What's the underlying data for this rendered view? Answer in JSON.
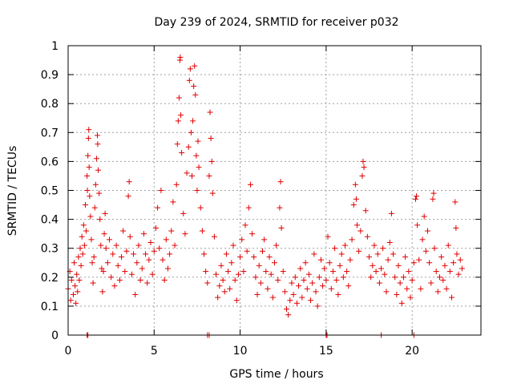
{
  "chart_data": {
    "type": "scatter",
    "title": "Day 239 of 2024, SRMTID for receiver p032",
    "xlabel": "GPS time / hours",
    "ylabel": "SRMTID / TECUs",
    "xlim": [
      0,
      24
    ],
    "ylim": [
      0,
      1
    ],
    "x_ticks": [
      0,
      5,
      10,
      15,
      20
    ],
    "x_tick_labels": [
      "0",
      "5",
      "10",
      "15",
      "20"
    ],
    "y_ticks": [
      0,
      0.1,
      0.2,
      0.3,
      0.4,
      0.5,
      0.6,
      0.7,
      0.8,
      0.9,
      1
    ],
    "y_tick_labels": [
      "0",
      "0.1",
      "0.2",
      "0.3",
      "0.4",
      "0.5",
      "0.6",
      "0.7",
      "0.8",
      "0.9",
      "1"
    ],
    "grid": true,
    "marker": "plus",
    "color": "#e00000",
    "series": [
      {
        "name": "SRMTID",
        "points": [
          [
            0.0,
            0.16
          ],
          [
            0.1,
            0.22
          ],
          [
            0.15,
            0.12
          ],
          [
            0.2,
            0.19
          ],
          [
            0.3,
            0.14
          ],
          [
            0.35,
            0.25
          ],
          [
            0.4,
            0.17
          ],
          [
            0.45,
            0.11
          ],
          [
            0.5,
            0.21
          ],
          [
            0.55,
            0.15
          ],
          [
            0.6,
            0.27
          ],
          [
            0.65,
            0.19
          ],
          [
            0.7,
            0.3
          ],
          [
            0.75,
            0.24
          ],
          [
            0.8,
            0.34
          ],
          [
            0.85,
            0.28
          ],
          [
            0.9,
            0.38
          ],
          [
            0.95,
            0.31
          ],
          [
            1.0,
            0.45
          ],
          [
            1.05,
            0.36
          ],
          [
            1.1,
            0.55
          ],
          [
            1.12,
            0.5
          ],
          [
            1.15,
            0.62
          ],
          [
            1.18,
            0.68
          ],
          [
            1.2,
            0.71
          ],
          [
            1.22,
            0.58
          ],
          [
            1.25,
            0.48
          ],
          [
            1.3,
            0.41
          ],
          [
            1.35,
            0.33
          ],
          [
            1.4,
            0.25
          ],
          [
            1.45,
            0.18
          ],
          [
            1.5,
            0.27
          ],
          [
            1.55,
            0.44
          ],
          [
            1.6,
            0.52
          ],
          [
            1.65,
            0.61
          ],
          [
            1.7,
            0.69
          ],
          [
            1.72,
            0.66
          ],
          [
            1.75,
            0.57
          ],
          [
            1.8,
            0.49
          ],
          [
            1.85,
            0.4
          ],
          [
            1.9,
            0.31
          ],
          [
            1.95,
            0.23
          ],
          [
            2.0,
            0.15
          ],
          [
            2.05,
            0.22
          ],
          [
            2.1,
            0.35
          ],
          [
            2.15,
            0.42
          ],
          [
            2.2,
            0.3
          ],
          [
            2.3,
            0.25
          ],
          [
            2.4,
            0.33
          ],
          [
            2.5,
            0.2
          ],
          [
            2.6,
            0.28
          ],
          [
            2.7,
            0.17
          ],
          [
            2.8,
            0.31
          ],
          [
            2.9,
            0.24
          ],
          [
            3.0,
            0.19
          ],
          [
            3.1,
            0.27
          ],
          [
            3.2,
            0.36
          ],
          [
            3.3,
            0.22
          ],
          [
            3.4,
            0.29
          ],
          [
            3.5,
            0.48
          ],
          [
            3.55,
            0.53
          ],
          [
            3.6,
            0.34
          ],
          [
            3.7,
            0.21
          ],
          [
            3.8,
            0.28
          ],
          [
            3.9,
            0.14
          ],
          [
            4.0,
            0.25
          ],
          [
            4.1,
            0.31
          ],
          [
            4.2,
            0.19
          ],
          [
            4.3,
            0.23
          ],
          [
            4.4,
            0.35
          ],
          [
            4.5,
            0.28
          ],
          [
            4.6,
            0.18
          ],
          [
            4.7,
            0.26
          ],
          [
            4.8,
            0.32
          ],
          [
            4.9,
            0.21
          ],
          [
            5.0,
            0.29
          ],
          [
            5.1,
            0.37
          ],
          [
            5.2,
            0.44
          ],
          [
            5.3,
            0.3
          ],
          [
            5.4,
            0.5
          ],
          [
            5.5,
            0.26
          ],
          [
            5.6,
            0.19
          ],
          [
            5.7,
            0.33
          ],
          [
            5.8,
            0.23
          ],
          [
            5.9,
            0.28
          ],
          [
            6.0,
            0.36
          ],
          [
            6.1,
            0.46
          ],
          [
            6.2,
            0.31
          ],
          [
            6.3,
            0.52
          ],
          [
            6.35,
            0.66
          ],
          [
            6.4,
            0.74
          ],
          [
            6.45,
            0.82
          ],
          [
            6.5,
            0.95
          ],
          [
            6.52,
            0.96
          ],
          [
            6.55,
            0.76
          ],
          [
            6.6,
            0.63
          ],
          [
            6.7,
            0.42
          ],
          [
            6.8,
            0.35
          ],
          [
            6.9,
            0.56
          ],
          [
            7.0,
            0.65
          ],
          [
            7.05,
            0.88
          ],
          [
            7.1,
            0.92
          ],
          [
            7.15,
            0.7
          ],
          [
            7.2,
            0.55
          ],
          [
            7.25,
            0.74
          ],
          [
            7.3,
            0.86
          ],
          [
            7.35,
            0.93
          ],
          [
            7.4,
            0.83
          ],
          [
            7.45,
            0.62
          ],
          [
            7.5,
            0.5
          ],
          [
            7.55,
            0.67
          ],
          [
            7.6,
            0.58
          ],
          [
            7.7,
            0.44
          ],
          [
            7.8,
            0.36
          ],
          [
            7.9,
            0.28
          ],
          [
            8.0,
            0.22
          ],
          [
            8.1,
            0.18
          ],
          [
            8.2,
            0.55
          ],
          [
            8.25,
            0.77
          ],
          [
            8.3,
            0.68
          ],
          [
            8.35,
            0.6
          ],
          [
            8.4,
            0.49
          ],
          [
            8.5,
            0.34
          ],
          [
            8.6,
            0.21
          ],
          [
            8.7,
            0.13
          ],
          [
            8.8,
            0.17
          ],
          [
            8.9,
            0.24
          ],
          [
            9.0,
            0.19
          ],
          [
            9.1,
            0.15
          ],
          [
            9.2,
            0.28
          ],
          [
            9.3,
            0.22
          ],
          [
            9.4,
            0.16
          ],
          [
            9.5,
            0.25
          ],
          [
            9.6,
            0.31
          ],
          [
            9.7,
            0.19
          ],
          [
            9.8,
            0.12
          ],
          [
            9.9,
            0.21
          ],
          [
            10.0,
            0.27
          ],
          [
            10.1,
            0.33
          ],
          [
            10.2,
            0.22
          ],
          [
            10.3,
            0.38
          ],
          [
            10.4,
            0.29
          ],
          [
            10.5,
            0.44
          ],
          [
            10.6,
            0.52
          ],
          [
            10.7,
            0.35
          ],
          [
            10.8,
            0.27
          ],
          [
            10.9,
            0.2
          ],
          [
            11.0,
            0.14
          ],
          [
            11.1,
            0.24
          ],
          [
            11.2,
            0.18
          ],
          [
            11.3,
            0.29
          ],
          [
            11.4,
            0.33
          ],
          [
            11.5,
            0.22
          ],
          [
            11.6,
            0.16
          ],
          [
            11.7,
            0.27
          ],
          [
            11.8,
            0.21
          ],
          [
            11.9,
            0.13
          ],
          [
            12.0,
            0.25
          ],
          [
            12.1,
            0.31
          ],
          [
            12.2,
            0.19
          ],
          [
            12.3,
            0.44
          ],
          [
            12.35,
            0.53
          ],
          [
            12.4,
            0.37
          ],
          [
            12.5,
            0.22
          ],
          [
            12.6,
            0.15
          ],
          [
            12.7,
            0.09
          ],
          [
            12.8,
            0.07
          ],
          [
            12.9,
            0.12
          ],
          [
            13.0,
            0.18
          ],
          [
            13.1,
            0.14
          ],
          [
            13.2,
            0.2
          ],
          [
            13.3,
            0.11
          ],
          [
            13.4,
            0.17
          ],
          [
            13.5,
            0.23
          ],
          [
            13.6,
            0.13
          ],
          [
            13.7,
            0.19
          ],
          [
            13.8,
            0.25
          ],
          [
            13.9,
            0.16
          ],
          [
            14.0,
            0.21
          ],
          [
            14.1,
            0.12
          ],
          [
            14.2,
            0.18
          ],
          [
            14.3,
            0.28
          ],
          [
            14.4,
            0.15
          ],
          [
            14.5,
            0.1
          ],
          [
            14.6,
            0.2
          ],
          [
            14.7,
            0.26
          ],
          [
            14.8,
            0.17
          ],
          [
            14.9,
            0.23
          ],
          [
            15.0,
            0.19
          ],
          [
            15.1,
            0.34
          ],
          [
            15.2,
            0.25
          ],
          [
            15.3,
            0.16
          ],
          [
            15.4,
            0.22
          ],
          [
            15.5,
            0.3
          ],
          [
            15.6,
            0.19
          ],
          [
            15.7,
            0.14
          ],
          [
            15.8,
            0.24
          ],
          [
            15.9,
            0.28
          ],
          [
            16.0,
            0.2
          ],
          [
            16.1,
            0.31
          ],
          [
            16.2,
            0.22
          ],
          [
            16.3,
            0.17
          ],
          [
            16.4,
            0.26
          ],
          [
            16.5,
            0.33
          ],
          [
            16.6,
            0.45
          ],
          [
            16.7,
            0.52
          ],
          [
            16.75,
            0.47
          ],
          [
            16.8,
            0.38
          ],
          [
            16.9,
            0.29
          ],
          [
            17.0,
            0.36
          ],
          [
            17.1,
            0.55
          ],
          [
            17.15,
            0.6
          ],
          [
            17.2,
            0.58
          ],
          [
            17.3,
            0.43
          ],
          [
            17.4,
            0.34
          ],
          [
            17.5,
            0.27
          ],
          [
            17.6,
            0.2
          ],
          [
            17.7,
            0.24
          ],
          [
            17.8,
            0.31
          ],
          [
            17.9,
            0.22
          ],
          [
            18.0,
            0.28
          ],
          [
            18.1,
            0.18
          ],
          [
            18.2,
            0.23
          ],
          [
            18.3,
            0.3
          ],
          [
            18.4,
            0.21
          ],
          [
            18.5,
            0.15
          ],
          [
            18.6,
            0.26
          ],
          [
            18.7,
            0.32
          ],
          [
            18.8,
            0.42
          ],
          [
            18.9,
            0.28
          ],
          [
            19.0,
            0.2
          ],
          [
            19.1,
            0.14
          ],
          [
            19.2,
            0.24
          ],
          [
            19.3,
            0.18
          ],
          [
            19.4,
            0.11
          ],
          [
            19.5,
            0.2
          ],
          [
            19.6,
            0.27
          ],
          [
            19.7,
            0.16
          ],
          [
            19.8,
            0.22
          ],
          [
            19.9,
            0.13
          ],
          [
            20.0,
            0.19
          ],
          [
            20.1,
            0.25
          ],
          [
            20.2,
            0.47
          ],
          [
            20.25,
            0.48
          ],
          [
            20.3,
            0.38
          ],
          [
            20.4,
            0.26
          ],
          [
            20.5,
            0.16
          ],
          [
            20.6,
            0.33
          ],
          [
            20.7,
            0.41
          ],
          [
            20.8,
            0.29
          ],
          [
            20.9,
            0.36
          ],
          [
            21.0,
            0.25
          ],
          [
            21.1,
            0.18
          ],
          [
            21.2,
            0.47
          ],
          [
            21.25,
            0.49
          ],
          [
            21.3,
            0.3
          ],
          [
            21.4,
            0.22
          ],
          [
            21.5,
            0.15
          ],
          [
            21.6,
            0.2
          ],
          [
            21.7,
            0.27
          ],
          [
            21.8,
            0.19
          ],
          [
            21.9,
            0.24
          ],
          [
            22.0,
            0.16
          ],
          [
            22.1,
            0.31
          ],
          [
            22.2,
            0.22
          ],
          [
            22.3,
            0.13
          ],
          [
            22.4,
            0.25
          ],
          [
            22.5,
            0.46
          ],
          [
            22.55,
            0.37
          ],
          [
            22.6,
            0.28
          ],
          [
            22.7,
            0.21
          ],
          [
            22.8,
            0.26
          ],
          [
            22.9,
            0.23
          ]
        ]
      }
    ],
    "zero_markers_x": [
      1.1,
      1.15,
      8.1,
      8.2,
      15.0,
      15.05,
      18.2,
      20.1
    ]
  }
}
